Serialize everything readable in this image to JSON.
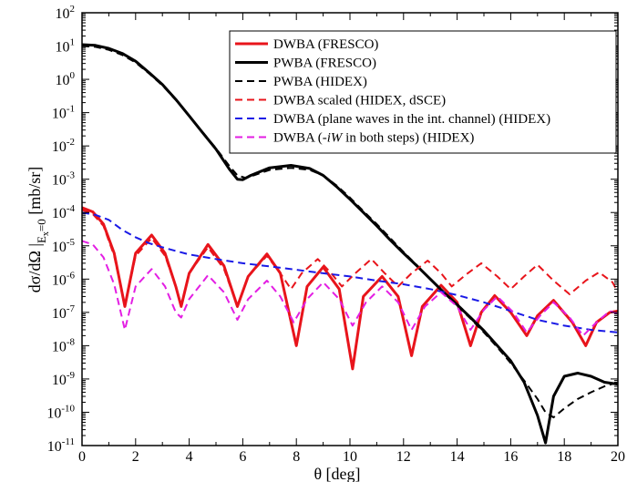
{
  "chart_data": {
    "type": "line",
    "xlabel": "θ  [deg]",
    "ylabel": "dσ/dΩ |E_x=0  [mb/sr]",
    "ylabel_parts": {
      "main": "dσ/dΩ |",
      "sub": "E",
      "subsub": "x",
      "subeq": "=0",
      "unit": "  [mb/sr]"
    },
    "xlim": [
      0,
      20
    ],
    "ylim_log10": [
      -11,
      2
    ],
    "y_scale": "log",
    "x_ticks": [
      0,
      2,
      4,
      6,
      8,
      10,
      12,
      14,
      16,
      18,
      20
    ],
    "y_tick_exponents": [
      -11,
      -10,
      -9,
      -8,
      -7,
      -6,
      -5,
      -4,
      -3,
      -2,
      -1,
      0,
      1,
      2
    ],
    "legend_position": "top-right",
    "series": [
      {
        "name": "DWBA (FRESCO)",
        "color": "#e8141b",
        "dash": "solid",
        "width": 3,
        "points": [
          [
            0,
            0.00014
          ],
          [
            0.4,
            0.000105
          ],
          [
            0.8,
            4.5e-05
          ],
          [
            1.2,
            6e-06
          ],
          [
            1.6,
            1.5e-07
          ],
          [
            2.0,
            6e-06
          ],
          [
            2.6,
            2.1e-05
          ],
          [
            3.1,
            6e-06
          ],
          [
            3.5,
            6e-07
          ],
          [
            3.7,
            1.5e-07
          ],
          [
            4.0,
            1.5e-06
          ],
          [
            4.7,
            1.1e-05
          ],
          [
            5.3,
            2.5e-06
          ],
          [
            5.8,
            1.5e-07
          ],
          [
            6.2,
            1.2e-06
          ],
          [
            6.9,
            5.7e-06
          ],
          [
            7.4,
            1.5e-06
          ],
          [
            8.0,
            1e-08
          ],
          [
            8.4,
            6e-07
          ],
          [
            9.0,
            2.3e-06
          ],
          [
            9.6,
            5e-07
          ],
          [
            10.1,
            2e-09
          ],
          [
            10.5,
            3e-07
          ],
          [
            11.2,
            1.2e-06
          ],
          [
            11.8,
            3e-07
          ],
          [
            12.3,
            5e-09
          ],
          [
            12.7,
            1.5e-07
          ],
          [
            13.4,
            6.5e-07
          ],
          [
            14.0,
            2e-07
          ],
          [
            14.5,
            1e-08
          ],
          [
            14.9,
            1e-07
          ],
          [
            15.4,
            3.2e-07
          ],
          [
            16.0,
            1e-07
          ],
          [
            16.6,
            2e-08
          ],
          [
            17.0,
            8e-08
          ],
          [
            17.6,
            2.3e-07
          ],
          [
            18.3,
            5e-08
          ],
          [
            18.8,
            1e-08
          ],
          [
            19.2,
            5e-08
          ],
          [
            19.7,
            1e-07
          ],
          [
            20.0,
            1.1e-07
          ]
        ]
      },
      {
        "name": "PWBA (FRESCO)",
        "color": "#000000",
        "dash": "solid",
        "width": 3,
        "points": [
          [
            0,
            11
          ],
          [
            0.5,
            10.5
          ],
          [
            1,
            8.5
          ],
          [
            1.5,
            6
          ],
          [
            2,
            3.5
          ],
          [
            2.5,
            1.6
          ],
          [
            3,
            0.7
          ],
          [
            3.5,
            0.25
          ],
          [
            4,
            0.08
          ],
          [
            4.5,
            0.025
          ],
          [
            5,
            0.008
          ],
          [
            5.5,
            0.002
          ],
          [
            5.8,
            0.001
          ],
          [
            6.0,
            0.00097
          ],
          [
            6.3,
            0.0013
          ],
          [
            7.0,
            0.0022
          ],
          [
            7.8,
            0.0026
          ],
          [
            8.5,
            0.0021
          ],
          [
            9.0,
            0.0013
          ],
          [
            9.5,
            0.0006
          ],
          [
            10,
            0.00025
          ],
          [
            10.5,
            0.0001
          ],
          [
            11,
            4e-05
          ],
          [
            11.5,
            1.5e-05
          ],
          [
            12,
            6e-06
          ],
          [
            12.5,
            2.5e-06
          ],
          [
            13,
            1e-06
          ],
          [
            13.5,
            4e-07
          ],
          [
            14,
            1.7e-07
          ],
          [
            14.5,
            7e-08
          ],
          [
            15,
            2.8e-08
          ],
          [
            15.5,
            1e-08
          ],
          [
            16,
            3.5e-09
          ],
          [
            16.5,
            8e-10
          ],
          [
            17,
            8e-11
          ],
          [
            17.3,
            1.2e-11
          ],
          [
            17.6,
            3e-10
          ],
          [
            18,
            1.2e-09
          ],
          [
            18.5,
            1.5e-09
          ],
          [
            19,
            1.2e-09
          ],
          [
            19.5,
            8e-10
          ],
          [
            20,
            7e-10
          ]
        ]
      },
      {
        "name": "PWBA (HIDEX)",
        "color": "#000000",
        "dash": "8,5",
        "width": 2,
        "points": [
          [
            0,
            10
          ],
          [
            0.5,
            9.5
          ],
          [
            1,
            7.7
          ],
          [
            1.5,
            5.4
          ],
          [
            2,
            3.2
          ],
          [
            2.5,
            1.5
          ],
          [
            3,
            0.66
          ],
          [
            3.5,
            0.24
          ],
          [
            4,
            0.08
          ],
          [
            4.5,
            0.026
          ],
          [
            5,
            0.0085
          ],
          [
            5.5,
            0.0025
          ],
          [
            5.8,
            0.0013
          ],
          [
            6.1,
            0.0011
          ],
          [
            6.4,
            0.0013
          ],
          [
            7.0,
            0.0019
          ],
          [
            7.8,
            0.0022
          ],
          [
            8.5,
            0.0019
          ],
          [
            9.0,
            0.0013
          ],
          [
            9.5,
            0.00065
          ],
          [
            10,
            0.00028
          ],
          [
            10.5,
            0.00011
          ],
          [
            11,
            4.5e-05
          ],
          [
            11.5,
            1.7e-05
          ],
          [
            12,
            6.5e-06
          ],
          [
            12.5,
            2.6e-06
          ],
          [
            13,
            1e-06
          ],
          [
            13.5,
            4e-07
          ],
          [
            14,
            1.6e-07
          ],
          [
            14.5,
            6.5e-08
          ],
          [
            15,
            2.5e-08
          ],
          [
            15.5,
            9e-09
          ],
          [
            16,
            3e-09
          ],
          [
            16.5,
            9e-10
          ],
          [
            17,
            2.5e-10
          ],
          [
            17.3,
            1e-10
          ],
          [
            17.6,
            7e-11
          ],
          [
            18,
            1.3e-10
          ],
          [
            18.5,
            2.5e-10
          ],
          [
            19,
            4e-10
          ],
          [
            19.5,
            6e-10
          ],
          [
            20,
            8e-10
          ]
        ]
      },
      {
        "name": "DWBA scaled (HIDEX, dSCE)",
        "color": "#e8141b",
        "dash": "8,5",
        "width": 2,
        "points": [
          [
            0,
            0.00012
          ],
          [
            0.4,
            9e-05
          ],
          [
            0.8,
            4e-05
          ],
          [
            1.2,
            5e-06
          ],
          [
            1.6,
            1.5e-07
          ],
          [
            2.0,
            5e-06
          ],
          [
            2.6,
            1.7e-05
          ],
          [
            3.1,
            5e-06
          ],
          [
            3.5,
            6e-07
          ],
          [
            3.7,
            1.5e-07
          ],
          [
            4.0,
            1.5e-06
          ],
          [
            4.7,
            9e-06
          ],
          [
            5.3,
            2e-06
          ],
          [
            5.8,
            1.5e-07
          ],
          [
            6.2,
            1.2e-06
          ],
          [
            6.9,
            5e-06
          ],
          [
            7.4,
            1.5e-06
          ],
          [
            7.8,
            5e-07
          ],
          [
            8.2,
            1.5e-06
          ],
          [
            8.8,
            4e-06
          ],
          [
            9.3,
            1.5e-06
          ],
          [
            9.7,
            6e-07
          ],
          [
            10.2,
            1.5e-06
          ],
          [
            10.8,
            4e-06
          ],
          [
            11.3,
            1.5e-06
          ],
          [
            11.8,
            6e-07
          ],
          [
            12.3,
            1.5e-06
          ],
          [
            12.9,
            3.6e-06
          ],
          [
            13.4,
            1.5e-06
          ],
          [
            13.8,
            6e-07
          ],
          [
            14.3,
            1.3e-06
          ],
          [
            14.9,
            3e-06
          ],
          [
            15.5,
            1.2e-06
          ],
          [
            16.0,
            5e-07
          ],
          [
            16.5,
            1.2e-06
          ],
          [
            17.0,
            2.7e-06
          ],
          [
            17.6,
            9e-07
          ],
          [
            18.2,
            3.5e-07
          ],
          [
            18.8,
            9e-07
          ],
          [
            19.3,
            1.6e-06
          ],
          [
            19.8,
            8e-07
          ],
          [
            20.0,
            4e-07
          ]
        ]
      },
      {
        "name": "DWBA (plane waves in the int. channel) (HIDEX)",
        "color": "#1a1ae6",
        "dash": "8,5",
        "width": 2,
        "points": [
          [
            0,
            0.0001
          ],
          [
            0.5,
            8.5e-05
          ],
          [
            1,
            6e-05
          ],
          [
            1.5,
            3e-05
          ],
          [
            2,
            1.8e-05
          ],
          [
            2.5,
            1.2e-05
          ],
          [
            3,
            9e-06
          ],
          [
            3.5,
            7e-06
          ],
          [
            4,
            5.5e-06
          ],
          [
            5,
            4e-06
          ],
          [
            6,
            3e-06
          ],
          [
            7,
            2.4e-06
          ],
          [
            8,
            1.9e-06
          ],
          [
            9,
            1.5e-06
          ],
          [
            10,
            1.2e-06
          ],
          [
            11,
            9e-07
          ],
          [
            12,
            7e-07
          ],
          [
            13,
            5e-07
          ],
          [
            14,
            3.3e-07
          ],
          [
            15,
            2e-07
          ],
          [
            16,
            1.1e-07
          ],
          [
            17,
            6e-08
          ],
          [
            18,
            4e-08
          ],
          [
            19,
            3e-08
          ],
          [
            20,
            2.5e-08
          ]
        ]
      },
      {
        "name": "DWBA (-iW in both steps) (HIDEX)",
        "color": "#e31ee3",
        "dash": "8,5",
        "width": 2,
        "points": [
          [
            0,
            1.4e-05
          ],
          [
            0.4,
            1.1e-05
          ],
          [
            0.8,
            4.5e-06
          ],
          [
            1.2,
            7e-07
          ],
          [
            1.6,
            3e-08
          ],
          [
            2.0,
            6e-07
          ],
          [
            2.6,
            2e-06
          ],
          [
            3.1,
            6e-07
          ],
          [
            3.5,
            1e-07
          ],
          [
            3.7,
            7e-08
          ],
          [
            4.0,
            2.5e-07
          ],
          [
            4.7,
            1.3e-06
          ],
          [
            5.3,
            4e-07
          ],
          [
            5.8,
            6e-08
          ],
          [
            6.2,
            2.5e-07
          ],
          [
            6.9,
            9e-07
          ],
          [
            7.4,
            3e-07
          ],
          [
            7.9,
            5e-08
          ],
          [
            8.4,
            2.5e-07
          ],
          [
            9.0,
            8e-07
          ],
          [
            9.6,
            2.5e-07
          ],
          [
            10.1,
            4e-08
          ],
          [
            10.6,
            2e-07
          ],
          [
            11.2,
            6e-07
          ],
          [
            11.8,
            2e-07
          ],
          [
            12.3,
            3e-08
          ],
          [
            12.8,
            1.5e-07
          ],
          [
            13.4,
            4e-07
          ],
          [
            14.0,
            1.5e-07
          ],
          [
            14.5,
            3e-08
          ],
          [
            15.0,
            1.2e-07
          ],
          [
            15.5,
            3e-07
          ],
          [
            16.1,
            1e-07
          ],
          [
            16.6,
            2.5e-08
          ],
          [
            17.1,
            8e-08
          ],
          [
            17.6,
            2e-07
          ],
          [
            18.2,
            7e-08
          ],
          [
            18.7,
            2e-08
          ],
          [
            19.2,
            5e-08
          ],
          [
            19.7,
            1.1e-07
          ],
          [
            20.0,
            9e-08
          ]
        ]
      }
    ]
  }
}
